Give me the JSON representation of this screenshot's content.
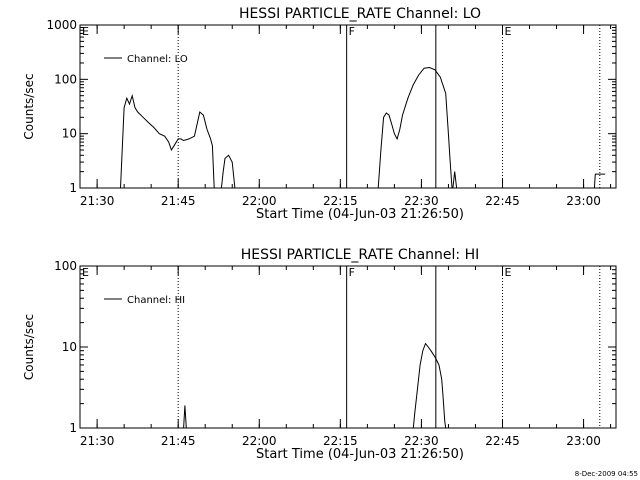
{
  "stamp": "8-Dec-2009 04:55",
  "chart_data": [
    {
      "type": "line",
      "title": "HESSI PARTICLE_RATE Channel: LO",
      "xlabel": "Start Time (04-Jun-03 21:26:50)",
      "ylabel": "Counts/sec",
      "yscale": "log",
      "ylim": [
        1,
        1000
      ],
      "xlim": [
        "21:26:50",
        "23:06:00"
      ],
      "xticks": [
        "21:30",
        "21:45",
        "22:00",
        "22:15",
        "22:30",
        "22:45",
        "23:00"
      ],
      "yticks": [
        "1",
        "10",
        "100",
        "1000"
      ],
      "legend": {
        "position": "top-left",
        "entries": [
          "Channel: LO"
        ]
      },
      "markers": [
        {
          "label": "E",
          "time": "21:26:50",
          "style": "dotted"
        },
        {
          "label": "",
          "time": "21:45:00",
          "style": "dotted"
        },
        {
          "label": "F",
          "time": "22:16:10",
          "style": "solid"
        },
        {
          "label": "",
          "time": "22:32:40",
          "style": "solid"
        },
        {
          "label": "E",
          "time": "22:45:00",
          "style": "dotted"
        },
        {
          "label": "",
          "time": "23:03:00",
          "style": "dotted"
        }
      ],
      "series": [
        {
          "name": "Channel: LO",
          "segments": [
            [
              [
                "21:34:20",
                1
              ],
              [
                "21:35:00",
                30
              ],
              [
                "21:35:30",
                45
              ],
              [
                "21:36:00",
                35
              ],
              [
                "21:36:30",
                50
              ],
              [
                "21:37:00",
                30
              ],
              [
                "21:37:30",
                25
              ],
              [
                "21:38:30",
                20
              ],
              [
                "21:39:30",
                16
              ],
              [
                "21:40:30",
                13
              ],
              [
                "21:41:30",
                10
              ],
              [
                "21:42:30",
                9
              ],
              [
                "21:43:15",
                7
              ],
              [
                "21:43:45",
                5
              ],
              [
                "21:44:15",
                6
              ],
              [
                "21:45:00",
                8
              ],
              [
                "21:45:30",
                8
              ],
              [
                "21:46:00",
                7.5
              ],
              [
                "21:47:00",
                8
              ],
              [
                "21:48:00",
                9
              ],
              [
                "21:48:30",
                15
              ],
              [
                "21:49:00",
                25
              ],
              [
                "21:49:40",
                22
              ],
              [
                "21:50:20",
                12
              ],
              [
                "21:51:00",
                8
              ],
              [
                "21:51:20",
                6
              ],
              [
                "21:51:40",
                1
              ]
            ],
            [
              [
                "21:53:00",
                1
              ],
              [
                "21:53:20",
                2
              ],
              [
                "21:53:40",
                3.5
              ],
              [
                "21:54:20",
                4
              ],
              [
                "21:55:00",
                3
              ],
              [
                "21:55:30",
                1
              ]
            ],
            [
              [
                "22:22:00",
                1
              ],
              [
                "22:22:30",
                5
              ],
              [
                "22:23:00",
                20
              ],
              [
                "22:23:30",
                24
              ],
              [
                "22:24:00",
                22
              ],
              [
                "22:24:30",
                15
              ],
              [
                "22:25:00",
                10
              ],
              [
                "22:25:30",
                8
              ],
              [
                "22:26:00",
                12
              ],
              [
                "22:26:30",
                22
              ],
              [
                "22:27:30",
                45
              ],
              [
                "22:28:30",
                80
              ],
              [
                "22:29:30",
                120
              ],
              [
                "22:30:30",
                160
              ],
              [
                "22:31:30",
                165
              ],
              [
                "22:32:30",
                150
              ],
              [
                "22:33:30",
                110
              ],
              [
                "22:34:30",
                55
              ],
              [
                "22:35:00",
                10
              ],
              [
                "22:35:20",
                3
              ],
              [
                "22:35:40",
                1
              ]
            ],
            [
              [
                "22:35:50",
                1
              ],
              [
                "22:36:10",
                2
              ],
              [
                "22:36:30",
                1
              ]
            ],
            [
              [
                "23:02:00",
                1
              ],
              [
                "23:02:10",
                1.8
              ],
              [
                "23:04:00",
                1.8
              ]
            ]
          ]
        }
      ]
    },
    {
      "type": "line",
      "title": "HESSI PARTICLE_RATE Channel: HI",
      "xlabel": "Start Time (04-Jun-03 21:26:50)",
      "ylabel": "Counts/sec",
      "yscale": "log",
      "ylim": [
        1,
        100
      ],
      "xlim": [
        "21:26:50",
        "23:06:00"
      ],
      "xticks": [
        "21:30",
        "21:45",
        "22:00",
        "22:15",
        "22:30",
        "22:45",
        "23:00"
      ],
      "yticks": [
        "1",
        "10",
        "100"
      ],
      "legend": {
        "position": "top-left",
        "entries": [
          "Channel: HI"
        ]
      },
      "markers": [
        {
          "label": "E",
          "time": "21:26:50",
          "style": "dotted"
        },
        {
          "label": "",
          "time": "21:45:00",
          "style": "dotted"
        },
        {
          "label": "F",
          "time": "22:16:10",
          "style": "solid"
        },
        {
          "label": "",
          "time": "22:32:40",
          "style": "solid"
        },
        {
          "label": "E",
          "time": "22:45:00",
          "style": "dotted"
        },
        {
          "label": "",
          "time": "23:03:00",
          "style": "dotted"
        }
      ],
      "series": [
        {
          "name": "Channel: HI",
          "segments": [
            [
              [
                "21:46:00",
                1
              ],
              [
                "21:46:15",
                1.9
              ],
              [
                "21:46:30",
                1
              ]
            ],
            [
              [
                "22:28:30",
                1
              ],
              [
                "22:28:45",
                1.5
              ],
              [
                "22:29:15",
                3
              ],
              [
                "22:29:45",
                6
              ],
              [
                "22:30:15",
                9
              ],
              [
                "22:30:45",
                11
              ],
              [
                "22:31:15",
                10
              ],
              [
                "22:31:45",
                9
              ],
              [
                "22:32:15",
                8
              ],
              [
                "22:32:45",
                7
              ],
              [
                "22:33:15",
                6
              ],
              [
                "22:33:45",
                4
              ],
              [
                "22:34:00",
                2.5
              ],
              [
                "22:34:20",
                1.2
              ],
              [
                "22:34:30",
                1
              ]
            ]
          ]
        }
      ]
    }
  ]
}
